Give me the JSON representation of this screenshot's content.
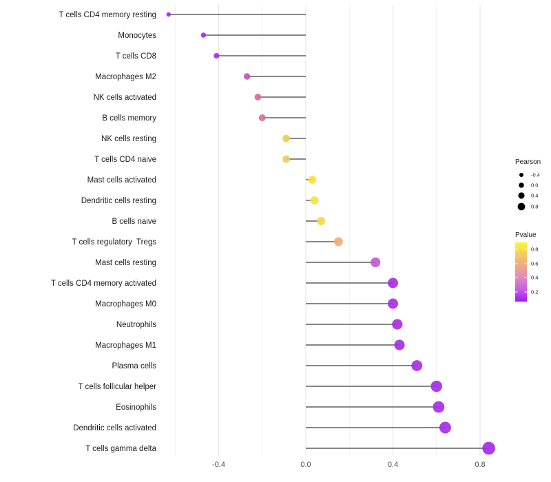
{
  "chart_data": {
    "type": "lollipop",
    "orientation": "horizontal",
    "title": "",
    "xlabel": "",
    "ylabel": "",
    "x_axis": {
      "tick_labels": [
        "-0.4",
        "0.0",
        "0.4",
        "0.8"
      ],
      "tick_values": [
        -0.4,
        0.0,
        0.4,
        0.8
      ],
      "minor_tick_values": [
        -0.6,
        -0.2,
        0.2,
        0.6
      ],
      "range": [
        -0.7,
        0.91
      ]
    },
    "points": [
      {
        "label": "T cells CD4 memory resting",
        "pearson": -0.63,
        "color": "#9f2bdb"
      },
      {
        "label": "Monocytes",
        "pearson": -0.47,
        "color": "#a02ce0"
      },
      {
        "label": "T cells CD8",
        "pearson": -0.41,
        "color": "#a132de"
      },
      {
        "label": "Macrophages M2",
        "pearson": -0.27,
        "color": "#c84fc0"
      },
      {
        "label": "NK cells activated",
        "pearson": -0.22,
        "color": "#d6699b"
      },
      {
        "label": "B cells memory",
        "pearson": -0.2,
        "color": "#d86e92"
      },
      {
        "label": "NK cells resting",
        "pearson": -0.09,
        "color": "#efcc55"
      },
      {
        "label": "T cells CD4 naive",
        "pearson": -0.09,
        "color": "#efcc55"
      },
      {
        "label": "Mast cells activated",
        "pearson": 0.03,
        "color": "#f5e23c"
      },
      {
        "label": "Dendritic cells resting",
        "pearson": 0.04,
        "color": "#f5e43a"
      },
      {
        "label": "B cells naive",
        "pearson": 0.07,
        "color": "#f2da42"
      },
      {
        "label": "T cells regulatory  Tregs",
        "pearson": 0.15,
        "color": "#eeac75"
      },
      {
        "label": "Mast cells resting",
        "pearson": 0.32,
        "color": "#c355d5"
      },
      {
        "label": "T cells CD4 memory activated",
        "pearson": 0.4,
        "color": "#a62be1"
      },
      {
        "label": "Macrophages M0",
        "pearson": 0.4,
        "color": "#a62be1"
      },
      {
        "label": "Neutrophils",
        "pearson": 0.42,
        "color": "#a62be1"
      },
      {
        "label": "Macrophages M1",
        "pearson": 0.43,
        "color": "#a62be1"
      },
      {
        "label": "Plasma cells",
        "pearson": 0.51,
        "color": "#a52be3"
      },
      {
        "label": "T cells follicular helper",
        "pearson": 0.6,
        "color": "#a42ae5"
      },
      {
        "label": "Eosinophils",
        "pearson": 0.61,
        "color": "#a42ae5"
      },
      {
        "label": "Dendritic cells activated",
        "pearson": 0.64,
        "color": "#a42ae5"
      },
      {
        "label": "T cells gamma delta",
        "pearson": 0.84,
        "color": "#a226e9"
      }
    ],
    "legend": {
      "size": {
        "title": "Pearson",
        "entries": [
          {
            "label": "-0.4",
            "value": -0.4
          },
          {
            "label": "0.0",
            "value": 0.0
          },
          {
            "label": "0.4",
            "value": 0.4
          },
          {
            "label": "0.8",
            "value": 0.8
          }
        ],
        "dot_color": "#000000"
      },
      "color": {
        "title": "Pvalue",
        "tick_labels": [
          "0.8",
          "0.6",
          "0.4",
          "0.2"
        ],
        "gradient_top_to_bottom": [
          "#fbf733",
          "#f3cd64",
          "#eda985",
          "#e189be",
          "#c75de5",
          "#a318f5"
        ]
      }
    },
    "style": {
      "stem_color": "#3f3f3f",
      "grid_major_color": "#e3e3e3",
      "grid_minor_color": "#f1f1f1",
      "background": "#ffffff"
    }
  }
}
